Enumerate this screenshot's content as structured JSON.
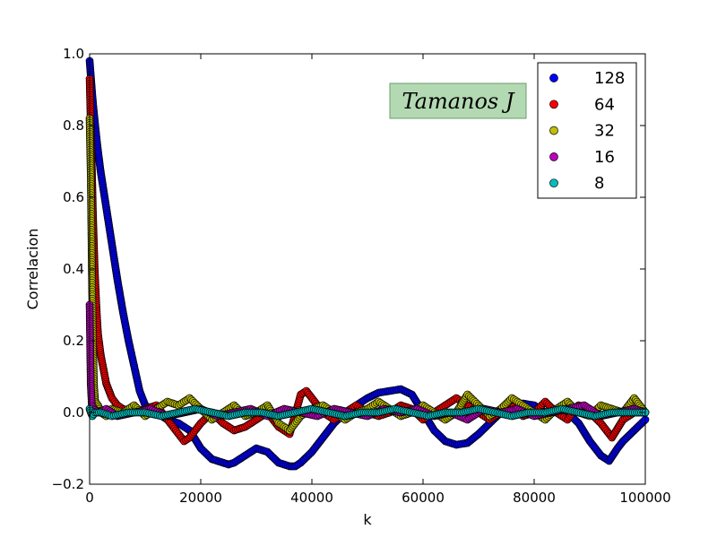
{
  "chart_data": {
    "type": "scatter",
    "xlabel": "k",
    "ylabel": "Correlacion",
    "xlim": [
      0,
      100000
    ],
    "ylim": [
      -0.2,
      1.0
    ],
    "xticks": [
      0,
      20000,
      40000,
      60000,
      80000,
      100000
    ],
    "yticks": [
      -0.2,
      0.0,
      0.2,
      0.4,
      0.6,
      0.8,
      1.0
    ],
    "xtick_labels": [
      "0",
      "20000",
      "40000",
      "60000",
      "80000",
      "100000"
    ],
    "ytick_labels": [
      "−0.2",
      "0.0",
      "0.2",
      "0.4",
      "0.6",
      "0.8",
      "1.0"
    ],
    "grid": false,
    "legend_position": "top-right",
    "annotation": "Tamanos J",
    "series": [
      {
        "name": "128",
        "color": "#0000ff",
        "marker": "circle",
        "x": [
          0,
          500,
          1000,
          1500,
          2000,
          3000,
          4000,
          5000,
          6000,
          7000,
          8000,
          9000,
          10000,
          12000,
          14000,
          16000,
          18000,
          20000,
          22000,
          24000,
          25000,
          26000,
          28000,
          30000,
          32000,
          34000,
          36000,
          37000,
          38000,
          40000,
          42000,
          44000,
          46000,
          48000,
          50000,
          52000,
          54000,
          56000,
          58000,
          60000,
          62000,
          64000,
          66000,
          68000,
          70000,
          72000,
          74000,
          76000,
          78000,
          80000,
          82000,
          84000,
          86000,
          88000,
          90000,
          92000,
          93500,
          95000,
          96000,
          98000,
          100000
        ],
        "y": [
          0.98,
          0.88,
          0.8,
          0.73,
          0.67,
          0.57,
          0.47,
          0.37,
          0.28,
          0.2,
          0.13,
          0.06,
          0.02,
          0.0,
          -0.02,
          -0.03,
          -0.05,
          -0.1,
          -0.13,
          -0.14,
          -0.145,
          -0.14,
          -0.12,
          -0.1,
          -0.11,
          -0.14,
          -0.15,
          -0.15,
          -0.14,
          -0.11,
          -0.07,
          -0.03,
          0.0,
          0.02,
          0.04,
          0.055,
          0.06,
          0.065,
          0.05,
          0.0,
          -0.05,
          -0.08,
          -0.09,
          -0.085,
          -0.06,
          -0.03,
          0.0,
          0.02,
          0.025,
          0.02,
          0.0,
          0.01,
          0.0,
          -0.03,
          -0.08,
          -0.12,
          -0.135,
          -0.1,
          -0.08,
          -0.05,
          -0.02
        ]
      },
      {
        "name": "64",
        "color": "#ff0000",
        "marker": "circle",
        "x": [
          0,
          300,
          600,
          900,
          1200,
          1500,
          2000,
          2500,
          3000,
          3500,
          4000,
          5000,
          6000,
          8000,
          10000,
          12000,
          14000,
          16000,
          17000,
          18000,
          20000,
          22000,
          24000,
          26000,
          28000,
          30000,
          32000,
          34000,
          36000,
          38000,
          39000,
          40000,
          42000,
          44000,
          46000,
          48000,
          50000,
          52000,
          54000,
          56000,
          58000,
          60000,
          62000,
          64000,
          66000,
          68000,
          70000,
          72000,
          74000,
          76000,
          78000,
          80000,
          82000,
          84000,
          86000,
          88000,
          90000,
          92000,
          94000,
          96000,
          98000,
          100000
        ],
        "y": [
          0.93,
          0.75,
          0.55,
          0.4,
          0.3,
          0.22,
          0.16,
          0.12,
          0.08,
          0.06,
          0.04,
          0.02,
          0.01,
          0.0,
          0.01,
          0.02,
          -0.02,
          -0.06,
          -0.08,
          -0.07,
          -0.03,
          0.0,
          -0.03,
          -0.05,
          -0.04,
          -0.02,
          0.0,
          -0.04,
          -0.06,
          0.05,
          0.06,
          0.04,
          0.0,
          -0.02,
          0.0,
          0.02,
          0.0,
          -0.01,
          0.0,
          0.02,
          0.01,
          -0.02,
          0.0,
          0.02,
          0.04,
          0.02,
          0.0,
          -0.02,
          0.0,
          0.02,
          -0.01,
          0.0,
          0.03,
          0.0,
          -0.02,
          0.02,
          0.0,
          -0.03,
          -0.07,
          -0.02,
          0.0,
          0.0
        ]
      },
      {
        "name": "32",
        "color": "#bfbf00",
        "marker": "circle",
        "x": [
          0,
          200,
          400,
          600,
          800,
          1000,
          1500,
          2000,
          3000,
          4000,
          6000,
          8000,
          10000,
          12000,
          14000,
          16000,
          18000,
          20000,
          22000,
          24000,
          26000,
          28000,
          30000,
          32000,
          34000,
          36000,
          38000,
          40000,
          42000,
          44000,
          46000,
          48000,
          50000,
          52000,
          54000,
          56000,
          58000,
          60000,
          62000,
          64000,
          66000,
          68000,
          70000,
          72000,
          74000,
          76000,
          78000,
          80000,
          82000,
          84000,
          86000,
          88000,
          90000,
          92000,
          94000,
          96000,
          98000,
          100000
        ],
        "y": [
          0.82,
          0.67,
          0.4,
          0.19,
          0.07,
          0.03,
          0.02,
          0.0,
          -0.01,
          0.01,
          0.0,
          0.02,
          -0.01,
          0.01,
          0.03,
          0.02,
          0.04,
          0.01,
          -0.02,
          0.0,
          0.02,
          -0.01,
          0.0,
          0.02,
          -0.03,
          -0.05,
          -0.01,
          0.01,
          0.02,
          0.0,
          -0.02,
          0.0,
          0.01,
          0.03,
          0.01,
          -0.01,
          0.0,
          0.02,
          0.0,
          -0.02,
          0.0,
          0.05,
          0.02,
          -0.01,
          0.01,
          0.04,
          0.02,
          0.0,
          -0.02,
          0.01,
          0.03,
          0.0,
          -0.01,
          0.02,
          0.01,
          0.0,
          0.04,
          0.0
        ]
      },
      {
        "name": "16",
        "color": "#bf00bf",
        "marker": "circle",
        "x": [
          0,
          200,
          400,
          800,
          1500,
          3000,
          5000,
          8000,
          11000,
          14000,
          17000,
          20000,
          23000,
          26000,
          29000,
          32000,
          35000,
          38000,
          41000,
          44000,
          47000,
          50000,
          53000,
          56000,
          59000,
          62000,
          65000,
          68000,
          71000,
          74000,
          77000,
          80000,
          83000,
          86000,
          89000,
          92000,
          95000,
          98000,
          100000
        ],
        "y": [
          0.3,
          0.08,
          0.02,
          0.01,
          0.0,
          0.01,
          -0.01,
          0.0,
          0.01,
          -0.01,
          0.0,
          0.01,
          -0.01,
          0.0,
          0.01,
          -0.01,
          0.01,
          0.0,
          -0.01,
          0.01,
          0.0,
          -0.01,
          0.01,
          0.0,
          0.01,
          -0.01,
          0.0,
          -0.02,
          0.01,
          0.0,
          0.01,
          -0.01,
          0.0,
          0.01,
          0.02,
          -0.01,
          0.0,
          0.01,
          0.0
        ]
      },
      {
        "name": "8",
        "color": "#00bfbf",
        "marker": "circle",
        "x": [
          0,
          200,
          500,
          1000,
          2000,
          4000,
          7000,
          10000,
          13000,
          16000,
          19000,
          22000,
          25000,
          28000,
          31000,
          34000,
          37000,
          40000,
          43000,
          46000,
          49000,
          52000,
          55000,
          58000,
          61000,
          64000,
          67000,
          70000,
          73000,
          76000,
          79000,
          82000,
          85000,
          88000,
          91000,
          94000,
          97000,
          100000
        ],
        "y": [
          0.01,
          0.0,
          -0.01,
          0.0,
          0.0,
          -0.01,
          0.0,
          0.0,
          -0.01,
          0.0,
          0.01,
          0.0,
          -0.01,
          0.0,
          0.0,
          -0.01,
          0.0,
          0.01,
          0.0,
          -0.01,
          0.0,
          0.0,
          0.01,
          0.0,
          -0.01,
          0.0,
          0.0,
          0.01,
          0.0,
          -0.01,
          0.0,
          0.0,
          0.01,
          0.0,
          -0.01,
          0.0,
          0.0,
          0.0
        ]
      }
    ]
  }
}
